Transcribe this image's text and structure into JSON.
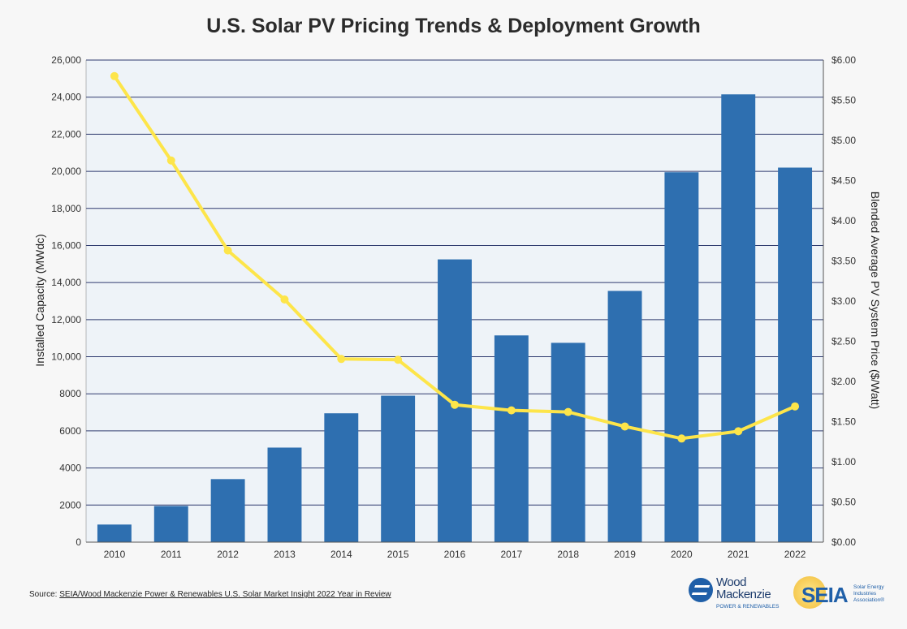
{
  "chart_data": {
    "type": "bar",
    "title": "U.S. Solar PV Pricing Trends & Deployment Growth",
    "categories": [
      "2010",
      "2011",
      "2012",
      "2013",
      "2014",
      "2015",
      "2016",
      "2017",
      "2018",
      "2019",
      "2020",
      "2021",
      "2022"
    ],
    "series": [
      {
        "type": "bar",
        "axis": "left",
        "values": [
          950,
          1950,
          3400,
          5100,
          6950,
          7900,
          15250,
          11150,
          10750,
          13550,
          19950,
          24150,
          20200
        ]
      },
      {
        "type": "line",
        "axis": "right",
        "values": [
          5.8,
          4.75,
          3.63,
          3.02,
          2.28,
          2.27,
          1.71,
          1.64,
          1.62,
          1.44,
          1.29,
          1.38,
          1.69
        ]
      }
    ],
    "ylabel_left": "Installed Capacity (MWdc)",
    "ylabel_right": "Blended Average PV System Price ($/Watt)",
    "ylim_left": [
      0,
      26000
    ],
    "ylim_right": [
      0,
      6.0
    ],
    "yticks_left": [
      "0",
      "2000",
      "4000",
      "6000",
      "8000",
      "10,000",
      "12,000",
      "14,000",
      "16,000",
      "18,000",
      "20,000",
      "22,000",
      "24,000",
      "26,000"
    ],
    "yticks_right": [
      "$0.00",
      "$0.50",
      "$1.00",
      "$1.50",
      "$2.00",
      "$2.50",
      "$3.00",
      "$3.50",
      "$4.00",
      "$4.50",
      "$5.00",
      "$5.50",
      "$6.00"
    ],
    "grid": true,
    "colors": {
      "bar": "#2e6fb0",
      "line": "#fde54a",
      "grid": "#2e3a6e",
      "plot_bg": "#eef3f8"
    }
  },
  "footer": {
    "source_prefix": "Source: ",
    "source_text": "SEIA/Wood Mackenzie Power & Renewables U.S. Solar Market Insight 2022 Year in Review"
  },
  "logos": {
    "wood_mackenzie": {
      "line1": "Wood",
      "line2": "Mackenzie",
      "sub": "POWER & RENEWABLES"
    },
    "seia": {
      "text": "SEIA",
      "sub": "Solar Energy Industries Association®"
    }
  }
}
